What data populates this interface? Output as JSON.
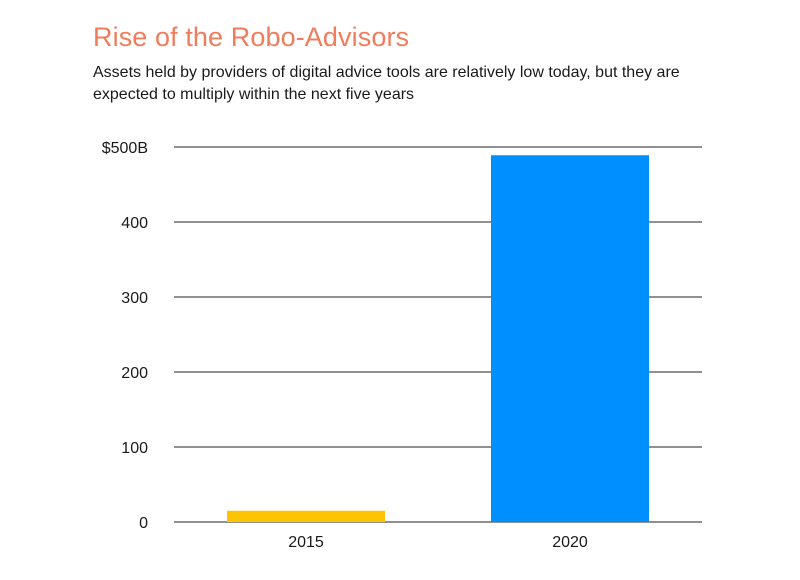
{
  "colors": {
    "title": "#f07c5c",
    "gridline": "#222222",
    "bar_2015": "#ffc400",
    "bar_2020": "#008fff"
  },
  "chart_data": {
    "type": "bar",
    "title": "Rise of the Robo-Advisors",
    "subtitle": "Assets held by providers of digital advice tools are relatively low today, but they are expected to multiply within the next five years",
    "categories": [
      "2015",
      "2020"
    ],
    "values": [
      15,
      489
    ],
    "ylim": [
      0,
      500
    ],
    "yticks": [
      0,
      100,
      200,
      300,
      400,
      500
    ],
    "ytick_labels": [
      "0",
      "100",
      "200",
      "300",
      "400",
      "$500B"
    ],
    "xlabel": "",
    "ylabel": "",
    "grid": true,
    "legend": "none"
  }
}
